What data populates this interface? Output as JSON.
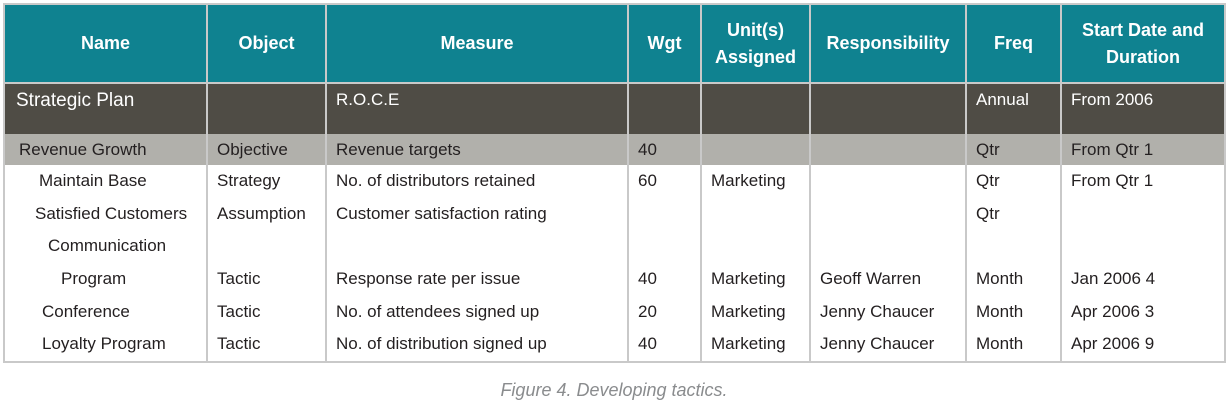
{
  "table": {
    "headers": [
      "Name",
      "Object",
      "Measure",
      "Wgt",
      "Unit(s)\nAssigned",
      "Responsibility",
      "Freq",
      "Start Date and\nDuration"
    ],
    "rows": [
      {
        "name": "Strategic Plan",
        "object": "",
        "measure": "R.O.C.E",
        "wgt": "",
        "units": "",
        "responsibility": "",
        "freq": "Annual",
        "start": "From 2006"
      },
      {
        "name": "Revenue Growth",
        "object": "Objective",
        "measure": "Revenue targets",
        "wgt": "40",
        "units": "",
        "responsibility": "",
        "freq": "Qtr",
        "start": "From Qtr 1"
      },
      {
        "name": "Maintain Base",
        "object": "Strategy",
        "measure": "No. of distributors retained",
        "wgt": "60",
        "units": "Marketing",
        "responsibility": "",
        "freq": "Qtr",
        "start": "From Qtr 1"
      },
      {
        "name": "Satisfied Customers",
        "object": "Assumption",
        "measure": "Customer satisfaction rating",
        "wgt": "",
        "units": "",
        "responsibility": "",
        "freq": "Qtr",
        "start": ""
      },
      {
        "name": "Communication",
        "object": "",
        "measure": "",
        "wgt": "",
        "units": "",
        "responsibility": "",
        "freq": "",
        "start": ""
      },
      {
        "name": "Program",
        "object": "Tactic",
        "measure": "Response rate per issue",
        "wgt": "40",
        "units": "Marketing",
        "responsibility": "Geoff Warren",
        "freq": "Month",
        "start": "Jan 2006 4"
      },
      {
        "name": "Conference",
        "object": "Tactic",
        "measure": "No. of attendees signed up",
        "wgt": "20",
        "units": "Marketing",
        "responsibility": "Jenny Chaucer",
        "freq": "Month",
        "start": "Apr 2006 3"
      },
      {
        "name": "Loyalty Program",
        "object": "Tactic",
        "measure": "No. of distribution signed up",
        "wgt": "40",
        "units": "Marketing",
        "responsibility": "Jenny Chaucer",
        "freq": "Month",
        "start": "Apr 2006 9"
      }
    ]
  },
  "caption": "Figure 4. Developing tactics.",
  "colors": {
    "header_bg": "#0f8290",
    "plan_row_bg": "#4f4c45",
    "objective_row_bg": "#b1b0ab"
  }
}
